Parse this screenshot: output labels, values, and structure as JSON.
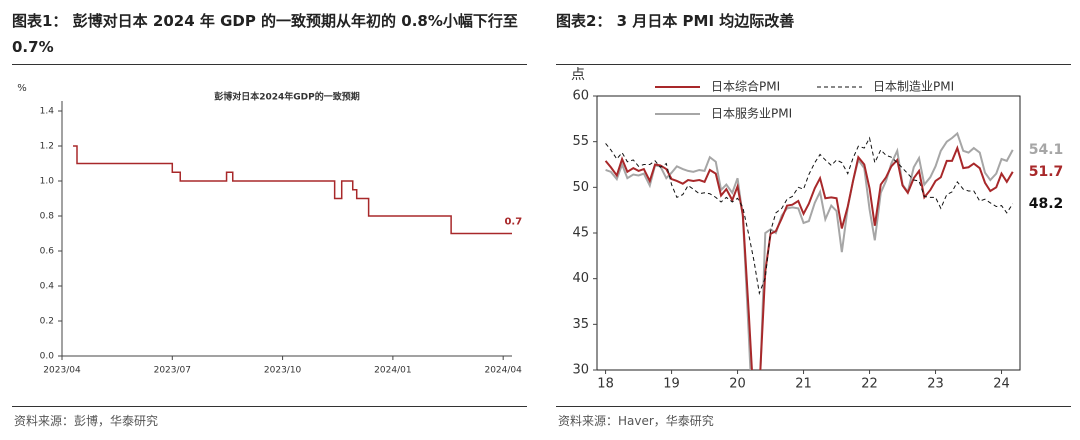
{
  "chart_data": [
    {
      "type": "line",
      "header": "图表1： 彭博对日本 2024 年 GDP 的一致预期从年初的 0.8%小幅下行至 0.7%",
      "title": "彭博对日本2024年GDP的一致预期",
      "ylabel": "%",
      "source": "资料来源：彭博，华泰研究",
      "color": "#a8282a",
      "x": [
        2023.275,
        2023.284,
        2023.284,
        2023.5,
        2023.5,
        2023.518,
        2023.518,
        2023.623,
        2023.623,
        2023.637,
        2023.637,
        2023.868,
        2023.868,
        2023.884,
        2023.884,
        2023.909,
        2023.909,
        2023.918,
        2023.918,
        2023.945,
        2023.945,
        2024.132,
        2024.132,
        2024.273
      ],
      "values": [
        1.2,
        1.2,
        1.1,
        1.1,
        1.05,
        1.05,
        1.0,
        1.0,
        1.05,
        1.05,
        1.0,
        1.0,
        0.9,
        0.9,
        1.0,
        1.0,
        0.95,
        0.95,
        0.9,
        0.9,
        0.8,
        0.8,
        0.7,
        0.7
      ],
      "xlim": [
        2023.25,
        2024.27
      ],
      "xticks": [
        {
          "value": 2023.25,
          "label": "2023/04"
        },
        {
          "value": 2023.5,
          "label": "2023/07"
        },
        {
          "value": 2023.75,
          "label": "2023/10"
        },
        {
          "value": 2024.0,
          "label": "2024/01"
        },
        {
          "value": 2024.25,
          "label": "2024/04"
        }
      ],
      "ylim": [
        0,
        1.4
      ],
      "yticks": [
        {
          "value": 0,
          "label": "0.0"
        },
        {
          "value": 0.2,
          "label": "0.2"
        },
        {
          "value": 0.4,
          "label": "0.4"
        },
        {
          "value": 0.6,
          "label": "0.6"
        },
        {
          "value": 0.8,
          "label": "0.8"
        },
        {
          "value": 1,
          "label": "1.0"
        },
        {
          "value": 1.2,
          "label": "1.2"
        },
        {
          "value": 1.4,
          "label": "1.4"
        }
      ],
      "grid": false,
      "end_labels": true
    },
    {
      "type": "line",
      "header": "图表2： 3 月日本 PMI 均边际改善",
      "ylabel": "点",
      "source": "资料来源：Haver，华泰研究",
      "x": [
        18.0,
        18.08,
        18.17,
        18.25,
        18.33,
        18.42,
        18.5,
        18.58,
        18.67,
        18.75,
        18.83,
        18.92,
        19.0,
        19.08,
        19.17,
        19.25,
        19.33,
        19.42,
        19.5,
        19.58,
        19.67,
        19.75,
        19.83,
        19.92,
        20.0,
        20.08,
        20.17,
        20.25,
        20.33,
        20.42,
        20.5,
        20.58,
        20.67,
        20.75,
        20.83,
        20.92,
        21.0,
        21.08,
        21.17,
        21.25,
        21.33,
        21.42,
        21.5,
        21.58,
        21.67,
        21.75,
        21.83,
        21.92,
        22.0,
        22.08,
        22.17,
        22.25,
        22.33,
        22.42,
        22.5,
        22.58,
        22.67,
        22.75,
        22.83,
        22.92,
        23.0,
        23.08,
        23.17,
        23.25,
        23.33,
        23.42,
        23.5,
        23.58,
        23.67,
        23.75,
        23.83,
        23.92,
        24.0,
        24.08,
        24.17
      ],
      "series": [
        {
          "name": "日本综合PMI",
          "color": "#a8282a",
          "width": 2,
          "dashed": false,
          "values": [
            52.9,
            52.2,
            51.3,
            53.1,
            51.7,
            52.1,
            51.8,
            52.0,
            50.7,
            52.5,
            52.4,
            52.0,
            50.9,
            50.7,
            50.4,
            50.8,
            50.7,
            50.8,
            50.6,
            51.9,
            51.5,
            49.1,
            49.8,
            48.6,
            50.1,
            47.0,
            36.2,
            25.8,
            27.8,
            40.8,
            44.9,
            45.2,
            46.6,
            48.0,
            48.1,
            48.5,
            47.1,
            48.2,
            49.9,
            51.0,
            48.8,
            48.9,
            48.8,
            45.5,
            47.9,
            50.7,
            53.3,
            52.5,
            49.9,
            45.8,
            50.3,
            51.1,
            52.3,
            53.0,
            50.2,
            49.4,
            51.0,
            51.8,
            48.9,
            49.7,
            50.7,
            51.1,
            52.9,
            52.9,
            54.3,
            52.1,
            52.2,
            52.6,
            52.1,
            50.5,
            49.6,
            50.0,
            51.5,
            50.6,
            51.7
          ]
        },
        {
          "name": "日本制造业PMI",
          "color": "#111111",
          "width": 1,
          "dashed": true,
          "values": [
            54.8,
            54.1,
            53.1,
            53.8,
            52.8,
            53.0,
            52.3,
            52.5,
            52.5,
            52.9,
            52.2,
            52.6,
            50.3,
            48.9,
            49.2,
            50.2,
            49.8,
            49.3,
            49.4,
            49.3,
            48.9,
            48.4,
            48.9,
            48.4,
            48.8,
            47.8,
            44.8,
            41.9,
            38.4,
            40.1,
            45.2,
            47.2,
            47.7,
            48.7,
            49.0,
            50.0,
            49.8,
            51.4,
            52.7,
            53.6,
            53.0,
            52.4,
            53.0,
            52.7,
            51.5,
            53.2,
            54.5,
            54.3,
            55.4,
            52.7,
            54.1,
            53.5,
            53.3,
            52.7,
            52.1,
            51.5,
            50.8,
            50.7,
            49.0,
            48.9,
            48.9,
            47.7,
            49.2,
            49.5,
            50.6,
            49.8,
            49.6,
            49.6,
            48.5,
            48.7,
            48.3,
            47.9,
            48.0,
            47.2,
            48.2
          ]
        },
        {
          "name": "日本服务业PMI",
          "color": "#a6a6a6",
          "width": 2,
          "dashed": false,
          "values": [
            51.9,
            51.7,
            50.9,
            52.5,
            51.0,
            51.4,
            51.3,
            51.5,
            50.2,
            52.4,
            52.3,
            51.0,
            51.6,
            52.3,
            52.0,
            51.8,
            51.7,
            51.9,
            51.8,
            53.3,
            52.8,
            49.7,
            50.3,
            49.4,
            51.0,
            46.8,
            33.8,
            21.5,
            26.5,
            45.0,
            45.4,
            45.0,
            46.9,
            47.7,
            47.8,
            47.7,
            46.1,
            46.3,
            48.3,
            49.5,
            46.5,
            48.0,
            47.4,
            42.9,
            47.8,
            50.7,
            53.0,
            52.1,
            47.6,
            44.2,
            49.4,
            50.7,
            52.6,
            54.0,
            50.3,
            49.5,
            52.2,
            53.2,
            50.3,
            51.1,
            52.3,
            54.0,
            55.0,
            55.4,
            55.9,
            54.0,
            53.8,
            54.3,
            53.8,
            51.6,
            50.8,
            51.5,
            53.1,
            52.9,
            54.1
          ]
        }
      ],
      "xlim": [
        17.87,
        24.28
      ],
      "xticks": [
        18,
        19,
        20,
        21,
        22,
        23,
        24
      ],
      "ylim": [
        30,
        60
      ],
      "yticks": [
        30,
        35,
        40,
        45,
        50,
        55,
        60
      ],
      "grid": false,
      "end_labels": true
    }
  ]
}
